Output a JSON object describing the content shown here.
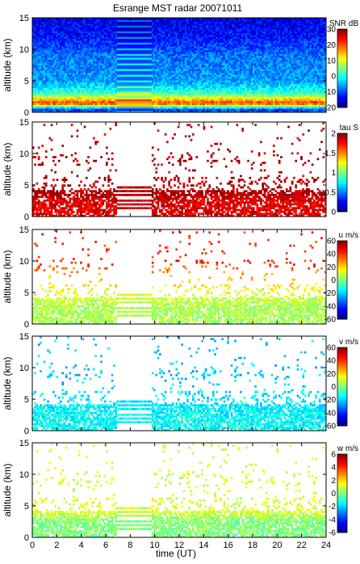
{
  "title": "Esrange MST radar 20071011",
  "xlabel": "time (UT)",
  "x_ticks": [
    "0",
    "2",
    "4",
    "6",
    "8",
    "10",
    "12",
    "14",
    "16",
    "18",
    "20",
    "22",
    "24"
  ],
  "chart_data": [
    {
      "type": "heatmap",
      "quantity": "SNR",
      "colorbar_label": "SNR dB",
      "clim": [
        -20,
        30
      ],
      "colorbar_ticks": [
        "30",
        "20",
        "10",
        "0",
        "-10",
        "-20"
      ],
      "xlim": [
        0,
        24
      ],
      "ylim": [
        0,
        15
      ],
      "ylabel": "altitude (km)",
      "y_ticks": [
        "0",
        "5",
        "10",
        "15"
      ],
      "data_gap_ut": [
        6.8,
        9.7
      ],
      "profile": [
        {
          "altitude_km": 0.5,
          "value": -10
        },
        {
          "altitude_km": 1.5,
          "value": 22
        },
        {
          "altitude_km": 2.0,
          "value": 14
        },
        {
          "altitude_km": 3.0,
          "value": 2
        },
        {
          "altitude_km": 5.0,
          "value": -6
        },
        {
          "altitude_km": 9.0,
          "value": -8
        },
        {
          "altitude_km": 12.0,
          "value": -13
        },
        {
          "altitude_km": 15.0,
          "value": -15
        }
      ]
    },
    {
      "type": "heatmap",
      "quantity": "tau",
      "colorbar_label": "tau S",
      "clim": [
        0,
        2
      ],
      "colorbar_ticks": [
        "2",
        "1.5",
        "1",
        "0.5",
        "0"
      ],
      "xlim": [
        0,
        24
      ],
      "ylim": [
        0,
        15
      ],
      "ylabel": "altitude (km)",
      "y_ticks": [
        "0",
        "5",
        "10",
        "15"
      ],
      "data_gap_ut": [
        6.8,
        9.7
      ],
      "profile": [
        {
          "altitude_km": 2.5,
          "value": 1.8
        },
        {
          "altitude_km": 3.5,
          "value": 1.9
        },
        {
          "altitude_km": 6.0,
          "value": 1.9
        },
        {
          "altitude_km": 9.0,
          "value": 1.9
        }
      ]
    },
    {
      "type": "heatmap",
      "quantity": "u",
      "colorbar_label": "u m/s",
      "clim": [
        -60,
        60
      ],
      "colorbar_ticks": [
        "60",
        "40",
        "20",
        "0",
        "-20",
        "-40",
        "-60"
      ],
      "xlim": [
        0,
        24
      ],
      "ylim": [
        0,
        15
      ],
      "ylabel": "altitude (km)",
      "y_ticks": [
        "0",
        "5",
        "10",
        "15"
      ],
      "data_gap_ut": [
        6.8,
        9.7
      ],
      "profile": [
        {
          "altitude_km": 2.5,
          "value": 5
        },
        {
          "altitude_km": 4.5,
          "value": 10
        },
        {
          "altitude_km": 8.5,
          "value": 30
        },
        {
          "altitude_km": 9.5,
          "value": 40
        }
      ]
    },
    {
      "type": "heatmap",
      "quantity": "v",
      "colorbar_label": "v m/s",
      "clim": [
        -60,
        60
      ],
      "colorbar_ticks": [
        "60",
        "40",
        "20",
        "0",
        "-20",
        "-40",
        "-60"
      ],
      "xlim": [
        0,
        24
      ],
      "ylim": [
        0,
        15
      ],
      "ylabel": "altitude (km)",
      "y_ticks": [
        "0",
        "5",
        "10",
        "15"
      ],
      "data_gap_ut": [
        6.8,
        9.7
      ],
      "profile": [
        {
          "altitude_km": 2.5,
          "value": -15
        },
        {
          "altitude_km": 4.5,
          "value": -18
        },
        {
          "altitude_km": 9.0,
          "value": -22
        }
      ]
    },
    {
      "type": "heatmap",
      "quantity": "w",
      "colorbar_label": "w m/s",
      "clim": [
        -6,
        6
      ],
      "colorbar_ticks": [
        "6",
        "4",
        "2",
        "0",
        "-2",
        "-4",
        "-6"
      ],
      "xlim": [
        0,
        24
      ],
      "ylim": [
        0,
        15
      ],
      "ylabel": "altitude (km)",
      "y_ticks": [
        "0",
        "5",
        "10",
        "15"
      ],
      "data_gap_ut": [
        6.8,
        9.7
      ],
      "profile": [
        {
          "altitude_km": 2.5,
          "value": 0
        },
        {
          "altitude_km": 4.0,
          "value": 1
        },
        {
          "altitude_km": 9.0,
          "value": 1
        }
      ]
    }
  ]
}
